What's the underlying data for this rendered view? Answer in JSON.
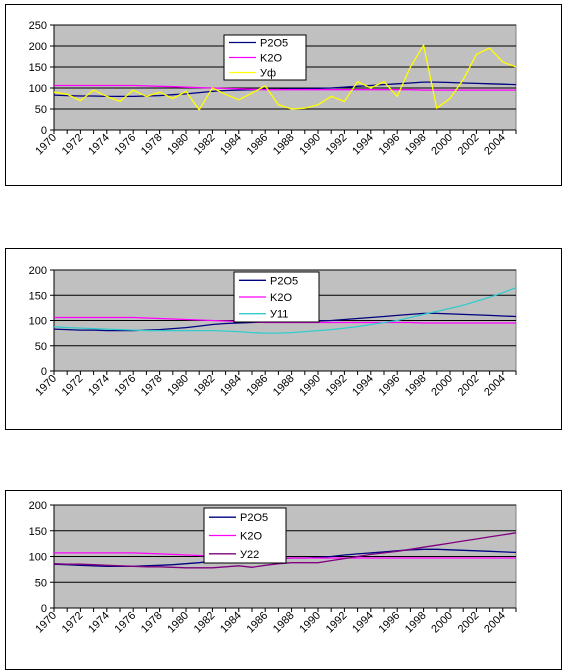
{
  "chart_data": [
    {
      "type": "line",
      "title": "",
      "xlabel": "",
      "ylabel": "",
      "ylim": [
        0,
        250
      ],
      "yticks": [
        0,
        50,
        100,
        150,
        200,
        250
      ],
      "grid": true,
      "legend_position": "top-center",
      "x": [
        1970,
        1971,
        1972,
        1973,
        1974,
        1975,
        1976,
        1977,
        1978,
        1979,
        1980,
        1981,
        1982,
        1983,
        1984,
        1985,
        1986,
        1987,
        1988,
        1989,
        1990,
        1991,
        1992,
        1993,
        1994,
        1995,
        1996,
        1997,
        1998,
        1999,
        2000,
        2001,
        2002,
        2003,
        2004,
        2005
      ],
      "xtick_labels": [
        "1970",
        "1972",
        "1974",
        "1976",
        "1978",
        "1980",
        "1982",
        "1984",
        "1986",
        "1988",
        "1990",
        "1992",
        "1994",
        "1996",
        "1998",
        "2000",
        "2002",
        "2004"
      ],
      "series": [
        {
          "name": "P2O5",
          "color": "#000080",
          "values": [
            83,
            82,
            81,
            81,
            80,
            80,
            80,
            81,
            82,
            84,
            86,
            89,
            92,
            94,
            95,
            96,
            97,
            97,
            98,
            98,
            99,
            100,
            102,
            104,
            106,
            108,
            110,
            112,
            114,
            114,
            113,
            112,
            111,
            110,
            109,
            108
          ]
        },
        {
          "name": "K2O",
          "color": "#ff00ff",
          "values": [
            106,
            106,
            106,
            106,
            106,
            106,
            106,
            105,
            104,
            103,
            102,
            101,
            100,
            99,
            98,
            97,
            96,
            96,
            96,
            96,
            96,
            96,
            96,
            96,
            96,
            96,
            96,
            96,
            95,
            95,
            95,
            95,
            95,
            95,
            95,
            95
          ]
        },
        {
          "name": "Уф",
          "color": "#ffff00",
          "values": [
            90,
            85,
            70,
            95,
            80,
            68,
            95,
            80,
            90,
            75,
            92,
            48,
            100,
            85,
            72,
            88,
            105,
            60,
            50,
            52,
            60,
            80,
            68,
            115,
            100,
            115,
            80,
            150,
            202,
            52,
            75,
            120,
            180,
            195,
            162,
            150
          ]
        }
      ]
    },
    {
      "type": "line",
      "title": "",
      "xlabel": "",
      "ylabel": "",
      "ylim": [
        0,
        200
      ],
      "yticks": [
        0,
        50,
        100,
        150,
        200
      ],
      "grid": true,
      "legend_position": "top-center",
      "x": [
        1970,
        1971,
        1972,
        1973,
        1974,
        1975,
        1976,
        1977,
        1978,
        1979,
        1980,
        1981,
        1982,
        1983,
        1984,
        1985,
        1986,
        1987,
        1988,
        1989,
        1990,
        1991,
        1992,
        1993,
        1994,
        1995,
        1996,
        1997,
        1998,
        1999,
        2000,
        2001,
        2002,
        2003,
        2004,
        2005
      ],
      "xtick_labels": [
        "1970",
        "1972",
        "1974",
        "1976",
        "1978",
        "1980",
        "1982",
        "1984",
        "1986",
        "1988",
        "1990",
        "1992",
        "1994",
        "1996",
        "1998",
        "2000",
        "2002",
        "2004"
      ],
      "series": [
        {
          "name": "P2O5",
          "color": "#000080",
          "values": [
            83,
            82,
            81,
            81,
            80,
            80,
            80,
            81,
            82,
            84,
            86,
            89,
            92,
            94,
            95,
            96,
            97,
            97,
            98,
            98,
            99,
            100,
            102,
            104,
            106,
            108,
            110,
            112,
            114,
            114,
            113,
            112,
            111,
            110,
            109,
            108
          ]
        },
        {
          "name": "K2O",
          "color": "#ff00ff",
          "values": [
            106,
            106,
            106,
            106,
            106,
            106,
            106,
            105,
            104,
            103,
            102,
            101,
            100,
            99,
            98,
            97,
            96,
            96,
            96,
            96,
            96,
            96,
            96,
            96,
            96,
            96,
            96,
            96,
            95,
            95,
            95,
            95,
            95,
            95,
            95,
            95
          ]
        },
        {
          "name": "У11",
          "color": "#33cccc",
          "values": [
            88,
            86,
            85,
            84,
            83,
            82,
            81,
            80,
            80,
            80,
            80,
            80,
            80,
            79,
            78,
            76,
            75,
            75,
            76,
            78,
            80,
            82,
            85,
            88,
            92,
            96,
            100,
            106,
            112,
            118,
            124,
            130,
            138,
            146,
            155,
            165
          ]
        }
      ]
    },
    {
      "type": "line",
      "title": "",
      "xlabel": "",
      "ylabel": "",
      "ylim": [
        0,
        200
      ],
      "yticks": [
        0,
        50,
        100,
        150,
        200
      ],
      "grid": true,
      "legend_position": "top-center",
      "x": [
        1970,
        1971,
        1972,
        1973,
        1974,
        1975,
        1976,
        1977,
        1978,
        1979,
        1980,
        1981,
        1982,
        1983,
        1984,
        1985,
        1986,
        1987,
        1988,
        1989,
        1990,
        1991,
        1992,
        1993,
        1994,
        1995,
        1996,
        1997,
        1998,
        1999,
        2000,
        2001,
        2002,
        2003,
        2004,
        2005
      ],
      "xtick_labels": [
        "1970",
        "1972",
        "1974",
        "1976",
        "1978",
        "1980",
        "1982",
        "1984",
        "1986",
        "1988",
        "1990",
        "1992",
        "1994",
        "1996",
        "1998",
        "2000",
        "2002",
        "2004"
      ],
      "series": [
        {
          "name": "P2O5",
          "color": "#000080",
          "values": [
            85,
            84,
            83,
            82,
            81,
            81,
            81,
            82,
            83,
            84,
            86,
            88,
            91,
            93,
            94,
            95,
            96,
            96,
            97,
            97,
            98,
            100,
            103,
            105,
            107,
            109,
            111,
            113,
            114,
            114,
            113,
            112,
            111,
            110,
            109,
            108
          ]
        },
        {
          "name": "K2O",
          "color": "#ff00ff",
          "values": [
            107,
            107,
            107,
            107,
            107,
            107,
            107,
            106,
            105,
            104,
            103,
            102,
            101,
            100,
            99,
            98,
            97,
            97,
            97,
            97,
            97,
            97,
            97,
            97,
            97,
            97,
            97,
            97,
            97,
            97,
            97,
            97,
            97,
            97,
            97,
            97
          ]
        },
        {
          "name": "У22",
          "color": "#800080",
          "values": [
            86,
            85,
            85,
            84,
            83,
            82,
            81,
            80,
            80,
            79,
            78,
            78,
            78,
            80,
            82,
            79,
            83,
            86,
            88,
            88,
            88,
            92,
            96,
            100,
            104,
            107,
            110,
            114,
            118,
            122,
            126,
            130,
            134,
            138,
            142,
            146
          ]
        }
      ]
    }
  ]
}
